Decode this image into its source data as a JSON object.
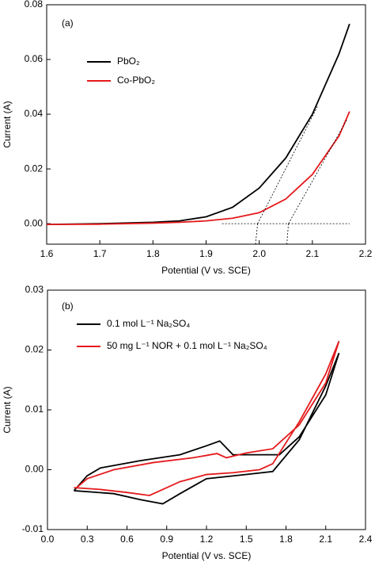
{
  "chart_data": [
    {
      "type": "line",
      "annotation": "(a)",
      "xlabel": "Potential (V vs. SCE)",
      "ylabel": "Current (A)",
      "xlim": [
        1.6,
        2.2
      ],
      "ylim": [
        -0.0075,
        0.08
      ],
      "xticks": [
        1.6,
        1.7,
        1.8,
        1.9,
        {
          "value": 2,
          "label": "2.0"
        },
        2.1,
        2.2
      ],
      "yticks": [
        {
          "value": 0,
          "label": "0.00"
        },
        {
          "value": 0.02,
          "label": "0.02"
        },
        {
          "value": 0.04,
          "label": "0.04"
        },
        {
          "value": 0.06,
          "label": "0.06"
        },
        {
          "value": 0.08,
          "label": "0.08"
        }
      ],
      "series": [
        {
          "name": "PbO₂",
          "color": "#000000",
          "x": [
            1.6,
            1.7,
            1.8,
            1.85,
            1.9,
            1.95,
            2.0,
            2.05,
            2.1,
            2.15,
            2.17
          ],
          "values": [
            -0.0003,
            0.0,
            0.0005,
            0.001,
            0.0025,
            0.006,
            0.013,
            0.024,
            0.04,
            0.062,
            0.073
          ]
        },
        {
          "name": "Co-PbO₂",
          "color": "#e41a1c",
          "x": [
            1.6,
            1.7,
            1.8,
            1.85,
            1.9,
            1.95,
            2.0,
            2.05,
            2.1,
            2.15,
            2.17
          ],
          "values": [
            -0.0003,
            -0.0002,
            0.0002,
            0.0005,
            0.001,
            0.002,
            0.004,
            0.009,
            0.018,
            0.032,
            0.041
          ]
        }
      ],
      "dashed_lines": [
        {
          "x": [
            1.997,
            2.11
          ],
          "y": [
            0,
            0.043
          ]
        },
        {
          "x": [
            2.055,
            2.165
          ],
          "y": [
            0,
            0.038
          ]
        },
        {
          "x": [
            1.93,
            2.17
          ],
          "y": [
            0,
            0
          ]
        },
        {
          "x": [
            1.997,
            1.993
          ],
          "y": [
            0,
            -0.0075
          ]
        },
        {
          "x": [
            2.055,
            2.052
          ],
          "y": [
            0,
            -0.0075
          ]
        }
      ]
    },
    {
      "type": "line",
      "annotation": "(b)",
      "xlabel": "Potential (V vs. SCE)",
      "ylabel": "Current (A)",
      "xlim": [
        0,
        2.4
      ],
      "ylim": [
        -0.01,
        0.03
      ],
      "xticks": [
        {
          "value": 0,
          "label": "0.0"
        },
        0.3,
        0.6,
        0.9,
        1.2,
        1.5,
        1.8,
        2.1,
        2.4
      ],
      "yticks": [
        -0.01,
        {
          "value": 0,
          "label": "0.00"
        },
        0.01,
        0.02,
        0.03
      ],
      "series": [
        {
          "name": "0.1 mol L⁻¹ Na₂SO₄",
          "color": "#000000",
          "x": [
            0.2,
            0.5,
            0.7,
            0.87,
            1.0,
            1.2,
            1.5,
            1.7,
            1.9,
            2.1,
            2.2,
            2.1,
            1.9,
            1.75,
            1.55,
            1.4,
            1.3,
            1.2,
            1.0,
            0.7,
            0.4,
            0.3,
            0.2
          ],
          "values": [
            -0.0035,
            -0.004,
            -0.005,
            -0.0057,
            -0.004,
            -0.0015,
            -0.0008,
            -0.0003,
            0.005,
            0.014,
            0.0195,
            0.0125,
            0.0055,
            0.0025,
            0.0025,
            0.0025,
            0.0048,
            0.004,
            0.0025,
            0.0015,
            0.0003,
            -0.001,
            -0.0035
          ]
        },
        {
          "name": "50 mg L⁻¹ NOR + 0.1 mol L⁻¹ Na₂SO₄",
          "color": "#e41a1c",
          "x": [
            0.2,
            0.4,
            0.6,
            0.77,
            1.0,
            1.2,
            1.4,
            1.6,
            1.7,
            1.9,
            2.1,
            2.2,
            2.1,
            1.9,
            1.7,
            1.5,
            1.35,
            1.28,
            1.1,
            0.8,
            0.5,
            0.3,
            0.22
          ],
          "values": [
            -0.003,
            -0.0033,
            -0.0038,
            -0.0043,
            -0.002,
            -0.0008,
            -0.0005,
            0.0,
            0.001,
            0.008,
            0.016,
            0.0215,
            0.0145,
            0.0075,
            0.0035,
            0.0028,
            0.002,
            0.0027,
            0.002,
            0.0012,
            0.0,
            -0.0015,
            -0.003
          ]
        }
      ]
    }
  ]
}
